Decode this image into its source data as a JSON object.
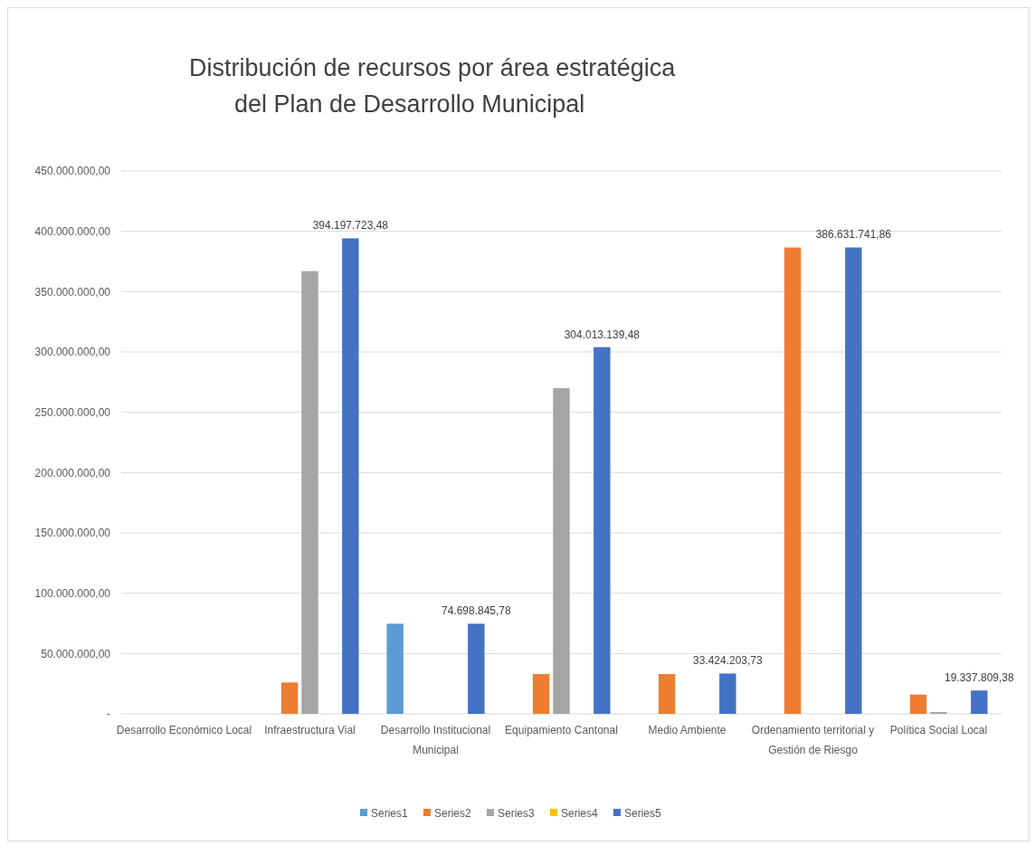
{
  "chart_data": {
    "type": "bar",
    "title": "Distribución de recursos por área estratégica del Plan de Desarrollo Municipal",
    "categories": [
      "Desarrollo Económico Local",
      "Infraestructura Vial",
      "Desarrollo Institucional Municipal",
      "Equipamiento Cantonal",
      "Medio Ambiente",
      "Ordenamiento territorial y Gestión de Riesgo",
      "Política Social Local"
    ],
    "series": [
      {
        "name": "Series1",
        "color": "#5b9bd5",
        "values": [
          null,
          null,
          74700000,
          null,
          null,
          null,
          null
        ]
      },
      {
        "name": "Series2",
        "color": "#ed7d31",
        "values": [
          null,
          26000000,
          null,
          33000000,
          33000000,
          386600000,
          16000000
        ]
      },
      {
        "name": "Series3",
        "color": "#a5a5a5",
        "values": [
          null,
          367000000,
          null,
          270000000,
          null,
          null,
          1500000
        ]
      },
      {
        "name": "Series4",
        "color": "#ffc000",
        "values": [
          null,
          null,
          null,
          null,
          null,
          null,
          null
        ]
      },
      {
        "name": "Series5",
        "color": "#4472c4",
        "values": [
          null,
          394197723.48,
          74698845.78,
          304013139.48,
          33424203.73,
          386631741.86,
          19337809.38
        ],
        "value_labels": [
          null,
          "394.197.723,48",
          "74.698.845,78",
          "304.013.139,48",
          "33.424.203,73",
          "386.631.741,86",
          "19.337.809,38"
        ]
      }
    ],
    "ylim": [
      0,
      450000000
    ],
    "yticks": [
      {
        "value": 0,
        "label": "-"
      },
      {
        "value": 50000000,
        "label": "50.000.000,00"
      },
      {
        "value": 100000000,
        "label": "100.000.000,00"
      },
      {
        "value": 150000000,
        "label": "150.000.000,00"
      },
      {
        "value": 200000000,
        "label": "200.000.000,00"
      },
      {
        "value": 250000000,
        "label": "250.000.000,00"
      },
      {
        "value": 300000000,
        "label": "300.000.000,00"
      },
      {
        "value": 350000000,
        "label": "350.000.000,00"
      },
      {
        "value": 400000000,
        "label": "400.000.000,00"
      },
      {
        "value": 450000000,
        "label": "450.000.000,00"
      }
    ],
    "grid": "y",
    "legend": "bottom"
  }
}
